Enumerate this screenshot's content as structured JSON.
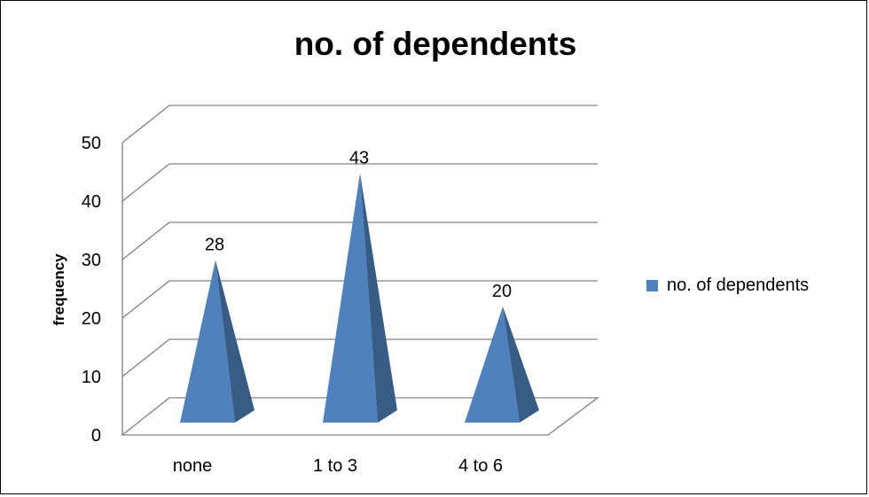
{
  "chart_data": {
    "type": "bar",
    "title": "no. of dependents",
    "xlabel": "",
    "ylabel": "frequency",
    "categories": [
      "none",
      "1 to 3",
      "4 to 6"
    ],
    "series": [
      {
        "name": "no. of dependents",
        "values": [
          28,
          43,
          20
        ]
      }
    ],
    "ylim": [
      0,
      50
    ],
    "yticks": [
      "0",
      "10",
      "20",
      "30",
      "40",
      "50"
    ],
    "data_labels": [
      "28",
      "43",
      "20"
    ],
    "grid": true,
    "legend": "right",
    "bar_shape": "pyramid",
    "colors": {
      "series": "#4f81bd",
      "series_dark": "#375d87",
      "grid": "#808080"
    }
  }
}
